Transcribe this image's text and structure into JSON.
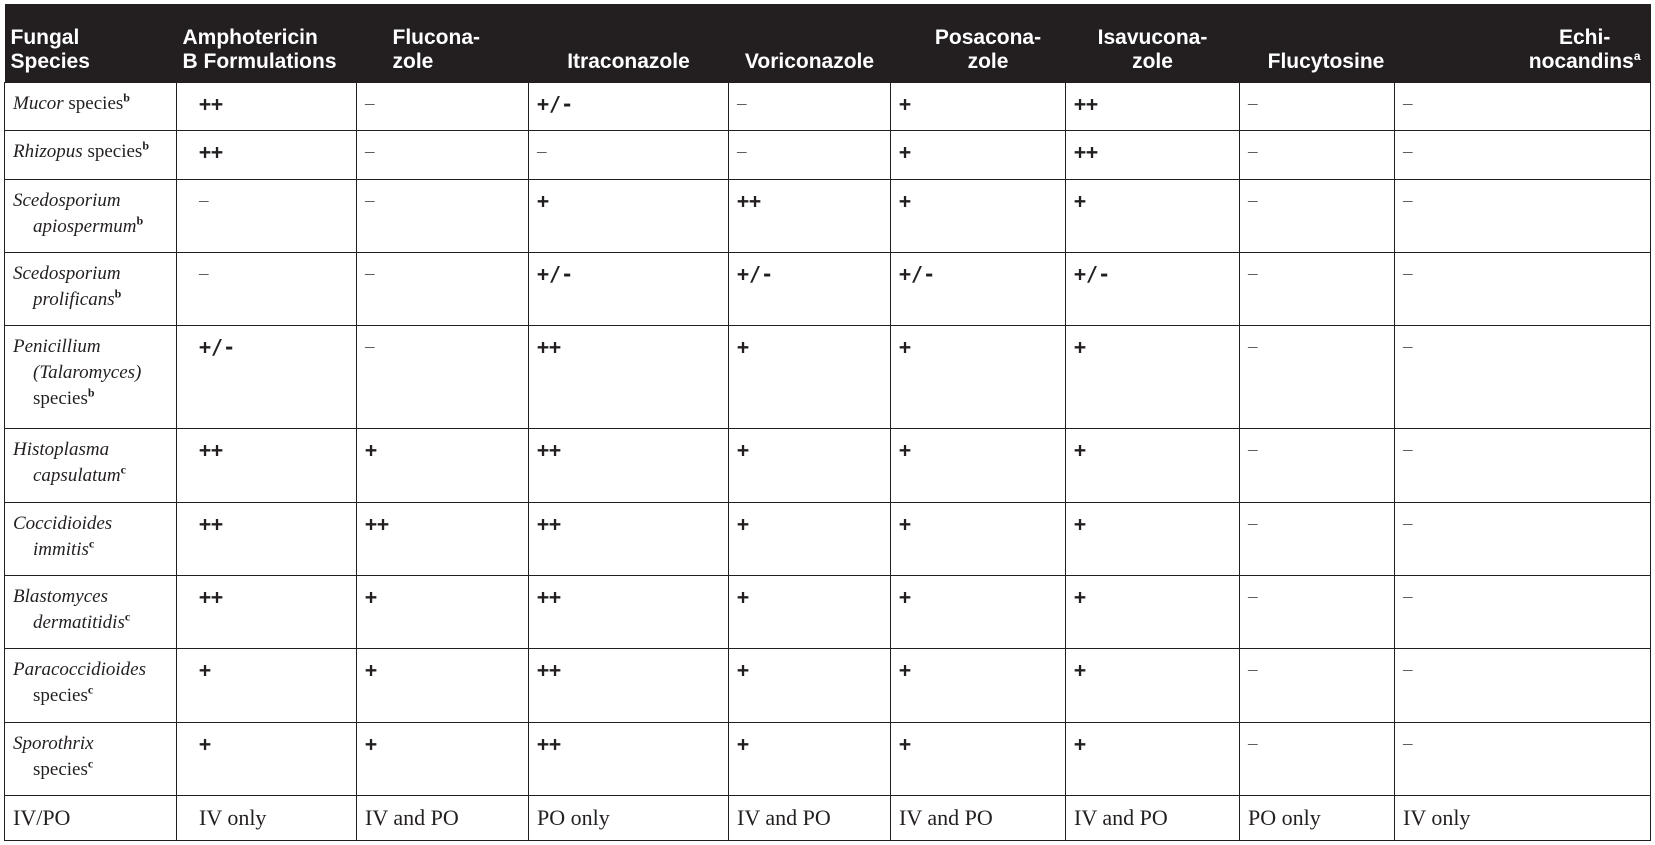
{
  "headers": [
    {
      "line1": "Fungal",
      "line2": "Species",
      "sup": ""
    },
    {
      "line1": "Amphotericin",
      "line2": "B Formulations",
      "sup": ""
    },
    {
      "line1": "Flucona-",
      "line2": "zole",
      "sup": ""
    },
    {
      "line1": "",
      "line2": "Itraconazole",
      "sup": ""
    },
    {
      "line1": "",
      "line2": "Voriconazole",
      "sup": ""
    },
    {
      "line1": "Posacona-",
      "line2": "zole",
      "sup": ""
    },
    {
      "line1": "Isavucona-",
      "line2": "zole",
      "sup": ""
    },
    {
      "line1": "",
      "line2": "Flucytosine",
      "sup": ""
    },
    {
      "line1": "Echi-",
      "line2": "nocandins",
      "sup": "a"
    }
  ],
  "rows": [
    {
      "species": {
        "line1": "Mucor",
        "roman1": " species",
        "line2": "",
        "roman2": "",
        "sup": "b"
      },
      "values": [
        "++",
        "–",
        "+/-",
        "–",
        "+",
        "++",
        "–",
        "–"
      ]
    },
    {
      "species": {
        "line1": "Rhizopus",
        "roman1": " species",
        "line2": "",
        "roman2": "",
        "sup": "b"
      },
      "values": [
        "++",
        "–",
        "–",
        "–",
        "+",
        "++",
        "–",
        "–"
      ]
    },
    {
      "species": {
        "line1": "Scedosporium",
        "roman1": "",
        "line2": "apiospermum",
        "roman2": "",
        "sup": "b"
      },
      "values": [
        "–",
        "–",
        "+",
        "++",
        "+",
        "+",
        "–",
        "–"
      ]
    },
    {
      "species": {
        "line1": "Scedosporium",
        "roman1": "",
        "line2": "prolificans",
        "roman2": "",
        "sup": "b"
      },
      "values": [
        "–",
        "–",
        "+/-",
        "+/-",
        "+/-",
        "+/-",
        "–",
        "–"
      ]
    },
    {
      "species": {
        "line1": "Penicillium",
        "roman1": "",
        "line2": "(Talaromyces)",
        "roman2": "",
        "line3": "species",
        "sup": "b"
      },
      "values": [
        "+/-",
        "–",
        "++",
        "+",
        "+",
        "+",
        "–",
        "–"
      ]
    },
    {
      "species": {
        "line1": "Histoplasma",
        "roman1": "",
        "line2": "capsulatum",
        "roman2": "",
        "sup": "c"
      },
      "values": [
        "++",
        "+",
        "++",
        "+",
        "+",
        "+",
        "–",
        "–"
      ]
    },
    {
      "species": {
        "line1": "Coccidioides",
        "roman1": "",
        "line2": "immitis",
        "roman2": "",
        "sup": "c"
      },
      "values": [
        "++",
        "++",
        "++",
        "+",
        "+",
        "+",
        "–",
        "–"
      ]
    },
    {
      "species": {
        "line1": "Blastomyces",
        "roman1": "",
        "line2": "dermatitidis",
        "roman2": "",
        "sup": "c"
      },
      "values": [
        "++",
        "+",
        "++",
        "+",
        "+",
        "+",
        "–",
        "–"
      ]
    },
    {
      "species": {
        "line1": "Paracoccidioides",
        "roman1": "",
        "line2": "",
        "roman2": "species",
        "sup": "c"
      },
      "values": [
        "+",
        "+",
        "++",
        "+",
        "+",
        "+",
        "–",
        "–"
      ]
    },
    {
      "species": {
        "line1": "Sporothrix",
        "roman1": "",
        "line2": "",
        "roman2": "species",
        "sup": "c"
      },
      "values": [
        "+",
        "+",
        "++",
        "+",
        "+",
        "+",
        "–",
        "–"
      ]
    }
  ],
  "footer": [
    "IV/PO",
    "IV only",
    "IV and PO",
    "PO only",
    "IV and PO",
    "IV and PO",
    "IV and PO",
    "PO only",
    "IV only"
  ]
}
